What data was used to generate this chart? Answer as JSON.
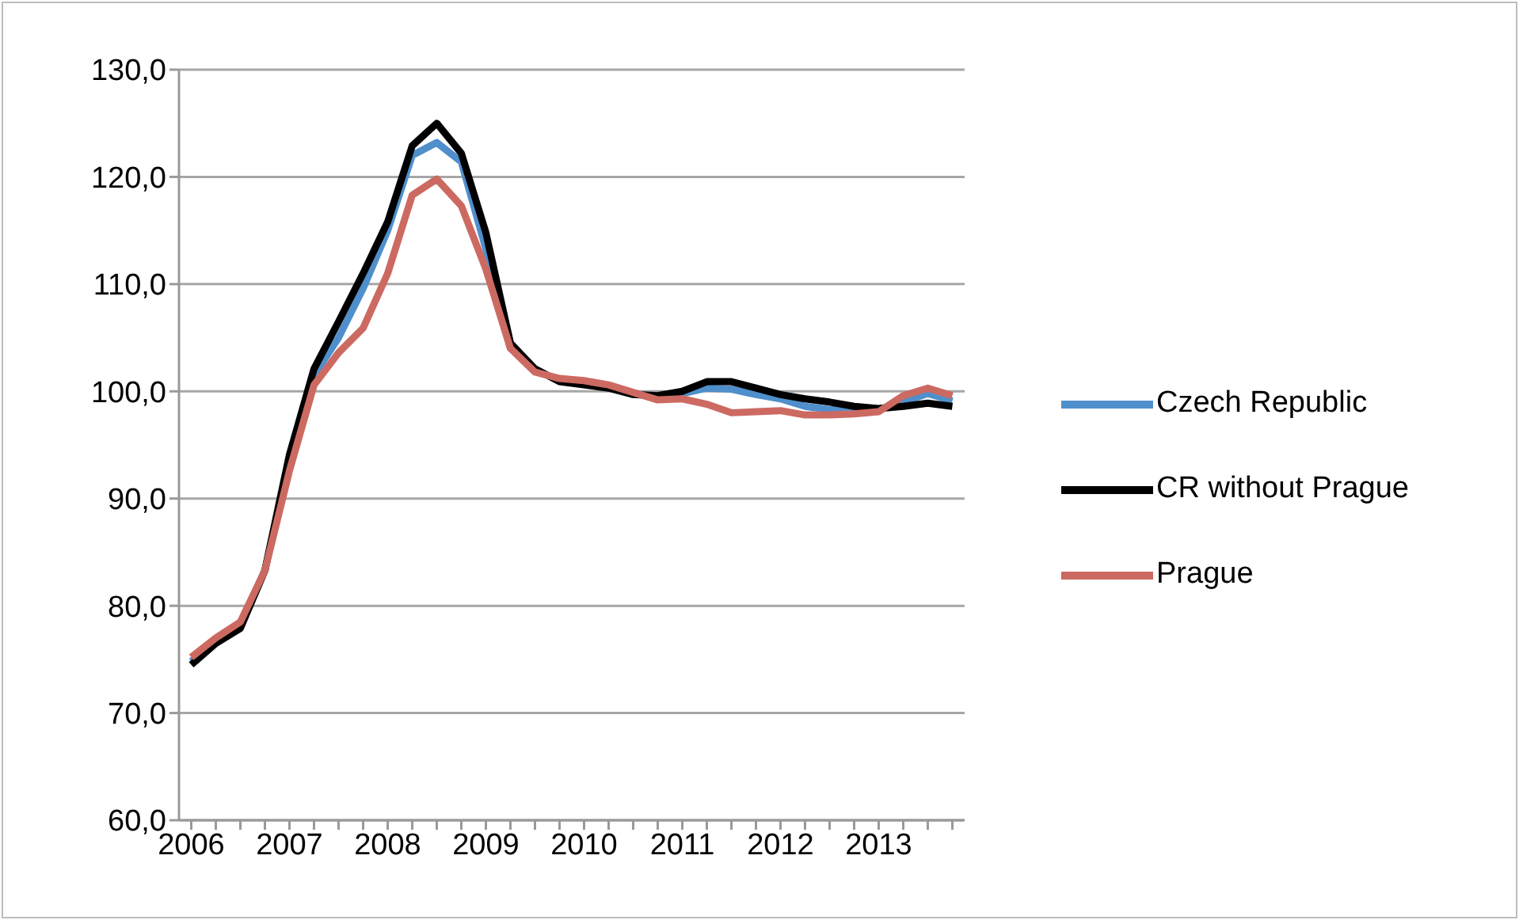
{
  "chart_data": {
    "type": "line",
    "categories": [
      "2006",
      null,
      null,
      null,
      "2007",
      null,
      null,
      null,
      "2008",
      null,
      null,
      null,
      "2009",
      null,
      null,
      null,
      "2010",
      null,
      null,
      null,
      "2011",
      null,
      null,
      null,
      "2012",
      null,
      null,
      null,
      "2013",
      null,
      null,
      null
    ],
    "series": [
      {
        "name": "Czech Republic",
        "color": "#4f8fcc",
        "values": [
          74.8,
          76.7,
          78.2,
          83.3,
          93.5,
          101.5,
          105,
          109.6,
          115,
          122,
          123.2,
          121.4,
          113.3,
          104,
          null,
          101,
          100.8,
          100.4,
          99.8,
          99.4,
          99.8,
          100.3,
          100.2,
          99.7,
          99.3,
          98.6,
          98.3,
          98.3,
          98.3,
          99,
          99.8,
          99.1
        ]
      },
      {
        "name": "CR without Prague",
        "color": "#000000",
        "values": [
          74.5,
          76.5,
          77.9,
          83.3,
          94.1,
          102.1,
          106.5,
          111,
          115.8,
          122.9,
          125,
          122.2,
          114.8,
          104.5,
          102.1,
          100.9,
          100.6,
          100.3,
          99.7,
          99.6,
          100,
          100.9,
          100.9,
          100.3,
          99.7,
          99.3,
          99,
          98.6,
          98.4,
          98.6,
          98.9,
          98.6
        ]
      },
      {
        "name": "Prague",
        "color": "#cc6a62",
        "values": [
          75.2,
          77,
          78.5,
          83.3,
          92.6,
          100.6,
          103.6,
          105.9,
          111,
          118.3,
          119.8,
          117.3,
          111.4,
          104,
          101.8,
          101.2,
          101,
          100.6,
          99.9,
          99.2,
          99.3,
          98.8,
          98,
          98.1,
          98.2,
          97.8,
          97.8,
          97.9,
          98.1,
          99.6,
          100.3,
          99.6
        ]
      }
    ],
    "ylim": [
      60,
      130
    ],
    "yticks": [
      {
        "value": 60,
        "label": "60,0"
      },
      {
        "value": 70,
        "label": "70,0"
      },
      {
        "value": 80,
        "label": "80,0"
      },
      {
        "value": 90,
        "label": "90,0"
      },
      {
        "value": 100,
        "label": "100,0"
      },
      {
        "value": 110,
        "label": "110,0"
      },
      {
        "value": 120,
        "label": "120,0"
      },
      {
        "value": 130,
        "label": "130,0"
      }
    ],
    "grid": "y",
    "legend": "right",
    "marker": "none",
    "line_style": "solid"
  }
}
